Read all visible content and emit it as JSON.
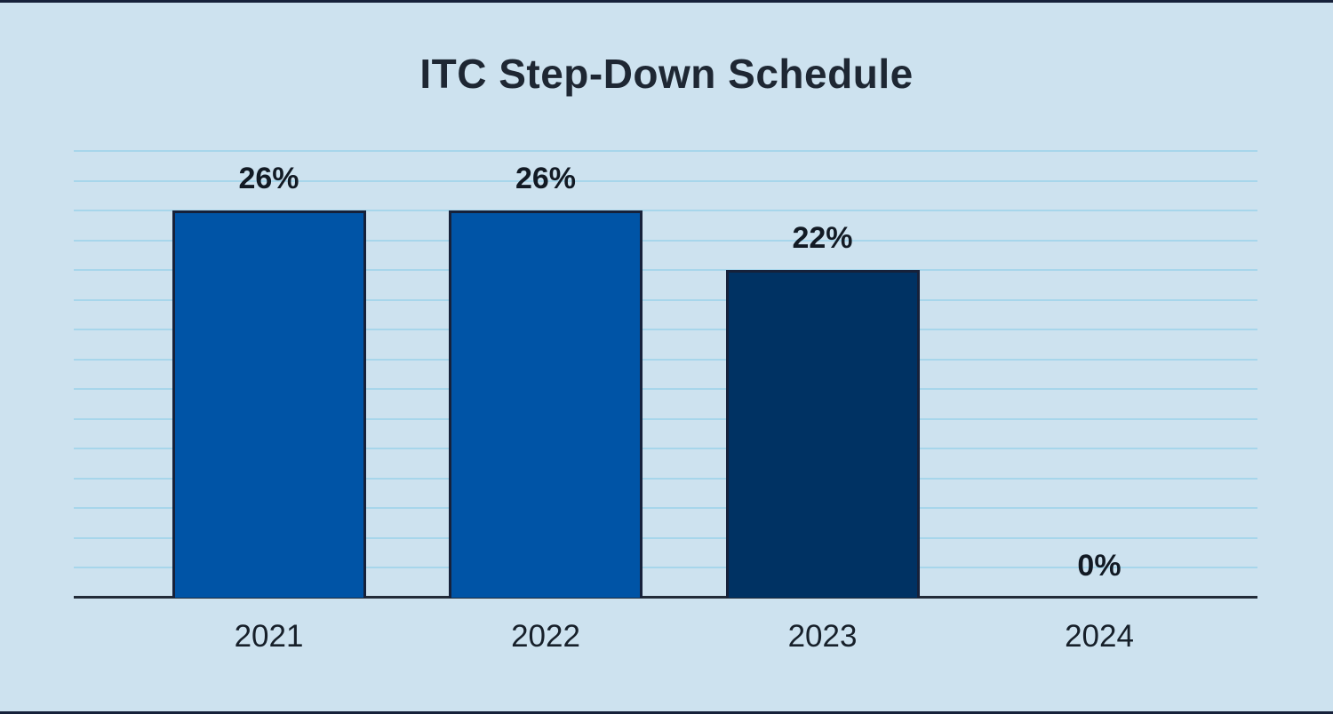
{
  "title": "ITC Step-Down Schedule",
  "chart_data": {
    "type": "bar",
    "title": "ITC Step-Down Schedule",
    "categories": [
      "2021",
      "2022",
      "2023",
      "2024"
    ],
    "values": [
      26,
      26,
      22,
      0
    ],
    "value_labels": [
      "26%",
      "26%",
      "22%",
      "0%"
    ],
    "xlabel": "",
    "ylabel": "",
    "ylim": [
      0,
      30
    ],
    "grid_step_percent": 2,
    "grid_on": true,
    "legend": "none",
    "bar_colors": [
      "#0054a6",
      "#0054a6",
      "#003263",
      null
    ],
    "colors": {
      "background": "#cde2ef",
      "gridline": "#a7d6eb",
      "bar_blue": "#0054a6",
      "bar_navy": "#003263",
      "bar_border": "#16213a",
      "axis_line": "#222b38",
      "title_text": "#1e2733",
      "label_text": "#121a24",
      "edge_strip": "#16213a"
    }
  }
}
